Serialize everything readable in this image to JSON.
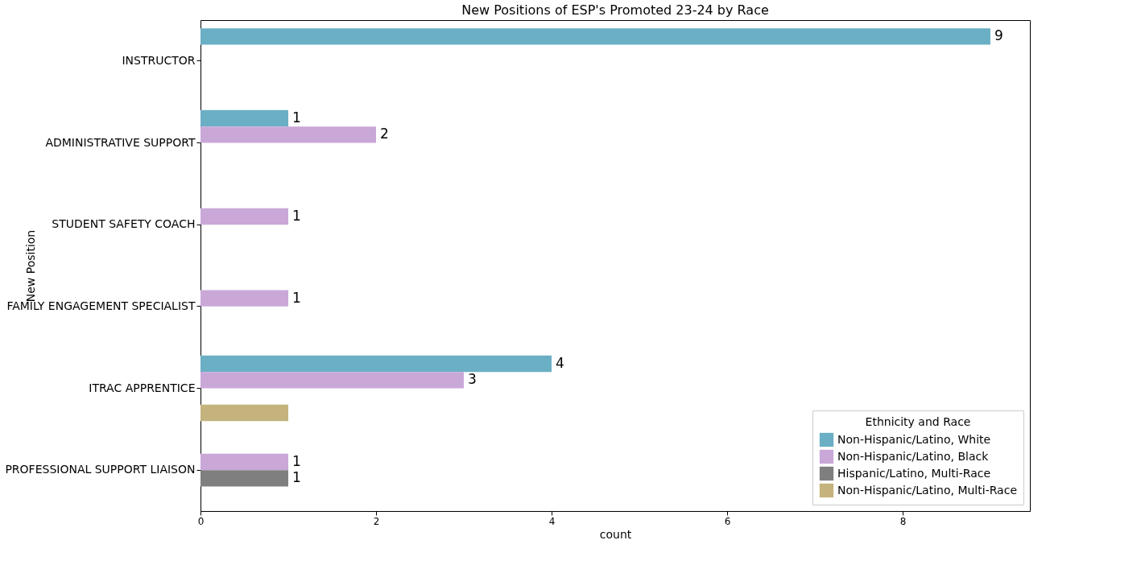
{
  "chart_data": {
    "type": "bar",
    "orientation": "horizontal",
    "title": "New Positions of ESP's Promoted 23-24 by Race",
    "xlabel": "count",
    "ylabel": "New Position",
    "legend_title": "Ethnicity and Race",
    "legend": "bottom right",
    "grid": false,
    "categories": [
      "INSTRUCTOR",
      "ADMINISTRATIVE SUPPORT",
      "STUDENT SAFETY COACH",
      "FAMILY ENGAGEMENT SPECIALIST",
      "ITRAC APPRENTICE",
      "PROFESSIONAL SUPPORT LIAISON"
    ],
    "xlim": [
      0,
      9.45
    ],
    "xticks": [
      0,
      2,
      4,
      6,
      8
    ],
    "series": [
      {
        "name": "Non-Hispanic/Latino, White",
        "color": "#6aafc4",
        "values": [
          9,
          1,
          null,
          null,
          4,
          null
        ],
        "value_labels": [
          "9",
          "1",
          null,
          null,
          "4",
          null
        ]
      },
      {
        "name": "Non-Hispanic/Latino, Black",
        "color": "#c9a8d8",
        "values": [
          null,
          2,
          1,
          1,
          3,
          1
        ],
        "value_labels": [
          null,
          "2",
          "1",
          "1",
          "3",
          "1"
        ]
      },
      {
        "name": "Hispanic/Latino, Multi-Race",
        "color": "#7f7f7f",
        "values": [
          null,
          null,
          null,
          null,
          null,
          1
        ],
        "value_labels": [
          null,
          null,
          null,
          null,
          null,
          "1"
        ]
      },
      {
        "name": "Non-Hispanic/Latino, Multi-Race",
        "color": "#c4b37c",
        "values": [
          null,
          null,
          null,
          null,
          1,
          null
        ],
        "value_labels": [
          null,
          null,
          null,
          null,
          null,
          null
        ]
      }
    ]
  }
}
